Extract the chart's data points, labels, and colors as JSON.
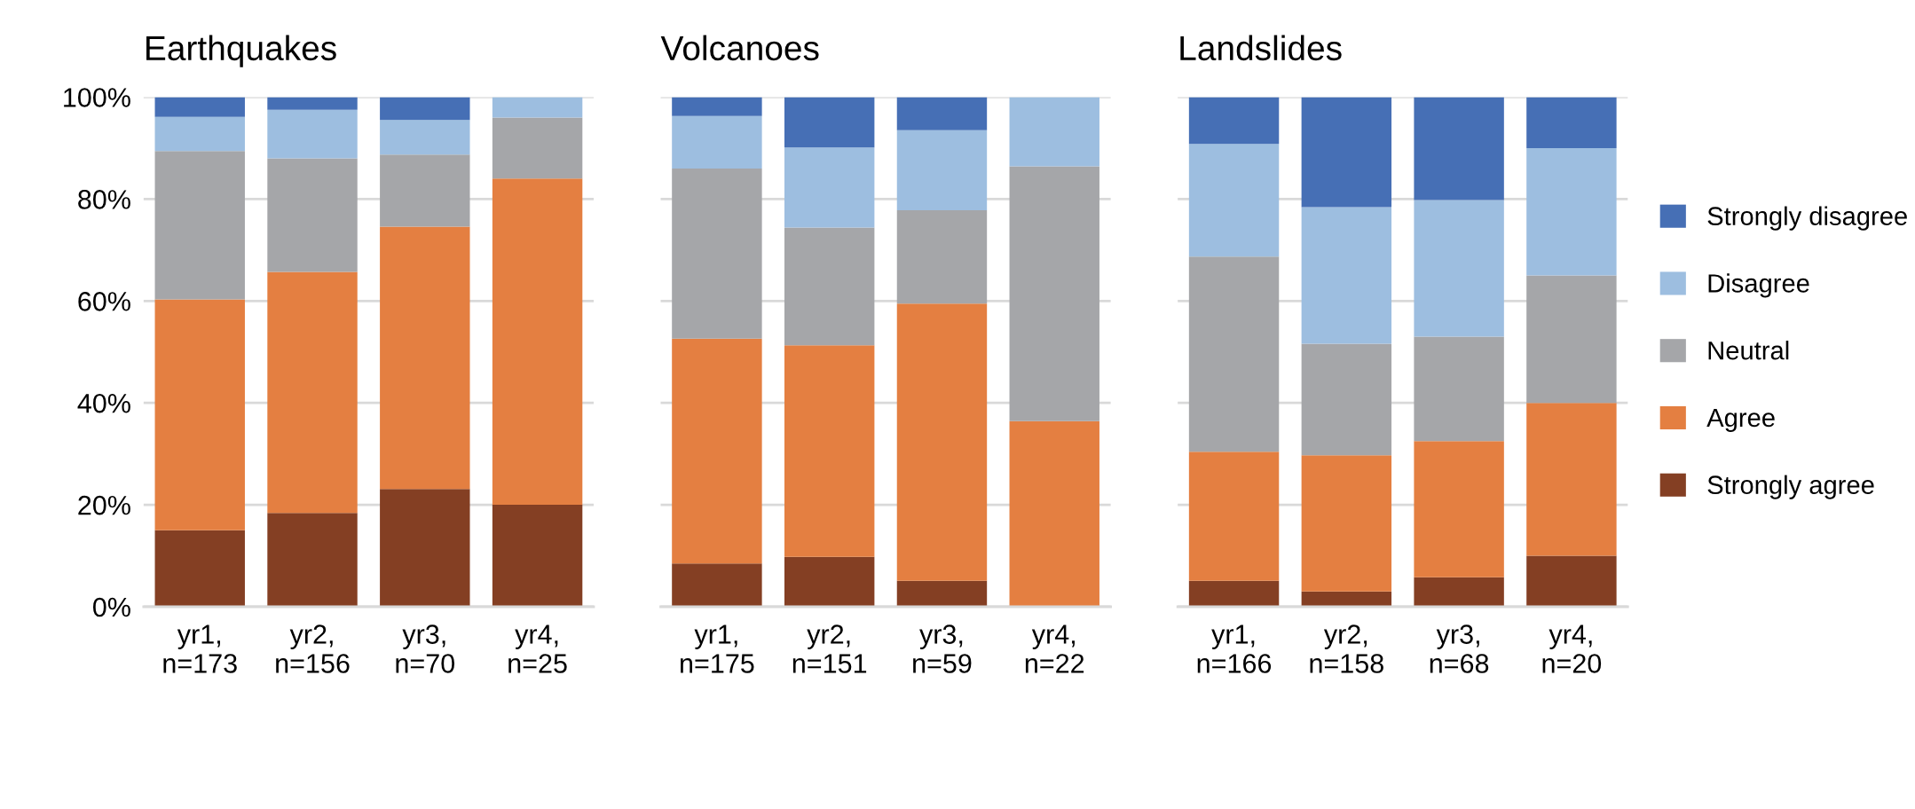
{
  "chart_data": [
    {
      "type": "bar",
      "title": "Earthquakes",
      "stacked": true,
      "categories": [
        "yr1,\nn=173",
        "yr2,\nn=156",
        "yr3,\nn=70",
        "yr4,\nn=25"
      ],
      "ylim": [
        0,
        100
      ],
      "yticks": [
        {
          "value": 0,
          "label": "0%"
        },
        {
          "value": 20,
          "label": "20%"
        },
        {
          "value": 40,
          "label": "40%"
        },
        {
          "value": 60,
          "label": "60%"
        },
        {
          "value": 80,
          "label": "80%"
        },
        {
          "value": 100,
          "label": "100%"
        }
      ],
      "grid": "y",
      "series": [
        {
          "color": "#843f23",
          "values": [
            15.0,
            18.4,
            23.1,
            20
          ]
        },
        {
          "color": "#e47f41",
          "values": [
            45.3,
            47.3,
            51.5,
            64
          ]
        },
        {
          "color": "#a5a6a9",
          "values": [
            29.1,
            22.3,
            14.1,
            12
          ]
        },
        {
          "color": "#9dbee0",
          "values": [
            6.7,
            9.5,
            6.8,
            4
          ]
        },
        {
          "color": "#466fb5",
          "values": [
            3.9,
            2.5,
            4.5,
            0
          ]
        }
      ]
    },
    {
      "type": "bar",
      "title": "Volcanoes",
      "stacked": true,
      "categories": [
        "yr1,\nn=175",
        "yr2,\nn=151",
        "yr3,\nn=59",
        "yr4,\nn=22"
      ],
      "ylim": [
        0,
        100
      ],
      "yticks": [
        {
          "value": 0,
          "label": null
        },
        {
          "value": 20,
          "label": null
        },
        {
          "value": 40,
          "label": null
        },
        {
          "value": 60,
          "label": null
        },
        {
          "value": 80,
          "label": null
        },
        {
          "value": 100,
          "label": null
        }
      ],
      "grid": "y",
      "tick_labels": "x",
      "series": [
        {
          "color": "#843f23",
          "values": [
            8.5,
            9.8,
            5.1,
            0
          ]
        },
        {
          "color": "#e47f41",
          "values": [
            44.1,
            41.5,
            54.4,
            36.4
          ]
        },
        {
          "color": "#a5a6a9",
          "values": [
            33.4,
            23.1,
            18.3,
            50
          ]
        },
        {
          "color": "#9dbee0",
          "values": [
            10.3,
            15.7,
            15.7,
            13.6
          ]
        },
        {
          "color": "#466fb5",
          "values": [
            3.7,
            9.9,
            6.5,
            0
          ]
        }
      ]
    },
    {
      "type": "bar",
      "title": "Landslides",
      "stacked": true,
      "categories": [
        "yr1,\nn=166",
        "yr2,\nn=158",
        "yr3,\nn=68",
        "yr4,\nn=20"
      ],
      "ylim": [
        0,
        100
      ],
      "yticks": [
        {
          "value": 0,
          "label": null
        },
        {
          "value": 20,
          "label": null
        },
        {
          "value": 40,
          "label": null
        },
        {
          "value": 60,
          "label": null
        },
        {
          "value": 80,
          "label": null
        },
        {
          "value": 100,
          "label": null
        }
      ],
      "grid": "y",
      "legend": "right",
      "tick_labels": "x",
      "series": [
        {
          "name": "Strongly agree",
          "color": "#843f23",
          "values": [
            5.1,
            3.0,
            5.8,
            10
          ]
        },
        {
          "name": "Agree",
          "color": "#e47f41",
          "values": [
            25.3,
            26.7,
            26.7,
            30
          ]
        },
        {
          "name": "Neutral",
          "color": "#a5a6a9",
          "values": [
            38.3,
            21.9,
            20.5,
            25
          ]
        },
        {
          "name": "Disagree",
          "color": "#9dbee0",
          "values": [
            22.1,
            26.8,
            26.8,
            25
          ]
        },
        {
          "name": "Strongly disagree",
          "color": "#466fb5",
          "values": [
            9.2,
            21.6,
            20.2,
            10
          ]
        }
      ]
    }
  ]
}
